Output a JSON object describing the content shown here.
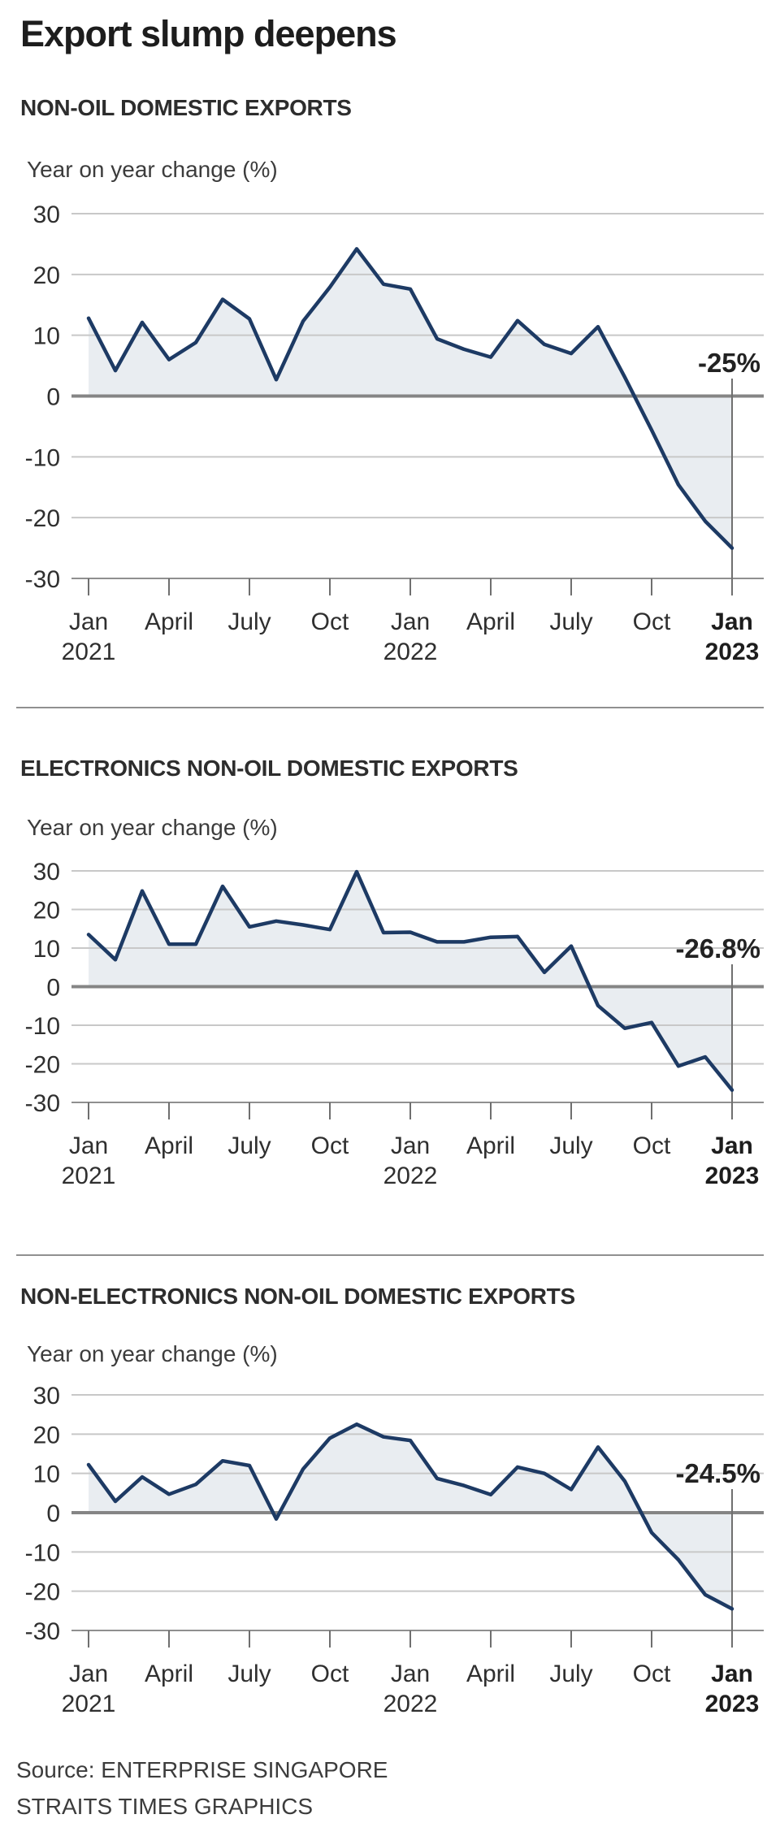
{
  "title": "Export slump deepens",
  "source": {
    "line1": "Source: ENTERPRISE SINGAPORE",
    "line2": "STRAITS TIMES GRAPHICS"
  },
  "colors": {
    "line": "#1d3a64",
    "fill": "#e9edf1",
    "grid": "#c8c8c8",
    "zero_line": "#858585",
    "axis_line": "#8f8f8f",
    "tick": "#6f6f6f",
    "callout": "#6f6f6f"
  },
  "chart_data": [
    {
      "type": "area",
      "title": "NON-OIL DOMESTIC EXPORTS",
      "ylabel": "Year on year change (%)",
      "ylim": [
        -30,
        30
      ],
      "y_ticks": [
        30,
        20,
        10,
        0,
        -10,
        -20,
        -30
      ],
      "grid": "horizontal",
      "x": [
        "Jan 2021",
        "Feb 2021",
        "Mar 2021",
        "Apr 2021",
        "May 2021",
        "Jun 2021",
        "Jul 2021",
        "Aug 2021",
        "Sep 2021",
        "Oct 2021",
        "Nov 2021",
        "Dec 2021",
        "Jan 2022",
        "Feb 2022",
        "Mar 2022",
        "Apr 2022",
        "May 2022",
        "Jun 2022",
        "Jul 2022",
        "Aug 2022",
        "Sep 2022",
        "Oct 2022",
        "Nov 2022",
        "Dec 2022",
        "Jan 2023"
      ],
      "values": [
        12.8,
        4.2,
        12.1,
        6.0,
        8.8,
        15.9,
        12.7,
        2.7,
        12.3,
        17.9,
        24.2,
        18.4,
        17.6,
        9.4,
        7.7,
        6.4,
        12.4,
        8.5,
        7.0,
        11.4,
        3.1,
        -5.6,
        -14.6,
        -20.6,
        -25.0
      ],
      "x_ticks": [
        {
          "i": 0,
          "month": "Jan",
          "year": "2021",
          "bold": false
        },
        {
          "i": 3,
          "month": "April",
          "bold": false
        },
        {
          "i": 6,
          "month": "July",
          "bold": false
        },
        {
          "i": 9,
          "month": "Oct",
          "bold": false
        },
        {
          "i": 12,
          "month": "Jan",
          "year": "2022",
          "bold": false
        },
        {
          "i": 15,
          "month": "April",
          "bold": false
        },
        {
          "i": 18,
          "month": "July",
          "bold": false
        },
        {
          "i": 21,
          "month": "Oct",
          "bold": false
        },
        {
          "i": 24,
          "month": "Jan",
          "year": "2023",
          "bold": true
        }
      ],
      "annotation": {
        "text": "-25%",
        "points_to": "Jan 2023",
        "value": -25.0
      }
    },
    {
      "type": "area",
      "title": "ELECTRONICS NON-OIL DOMESTIC EXPORTS",
      "ylabel": "Year on year change (%)",
      "ylim": [
        -30,
        30
      ],
      "y_ticks": [
        30,
        20,
        10,
        0,
        -10,
        -20,
        -30
      ],
      "grid": "horizontal",
      "x": [
        "Jan 2021",
        "Feb 2021",
        "Mar 2021",
        "Apr 2021",
        "May 2021",
        "Jun 2021",
        "Jul 2021",
        "Aug 2021",
        "Sep 2021",
        "Oct 2021",
        "Nov 2021",
        "Dec 2021",
        "Jan 2022",
        "Feb 2022",
        "Mar 2022",
        "Apr 2022",
        "May 2022",
        "Jun 2022",
        "Jul 2022",
        "Aug 2022",
        "Sep 2022",
        "Oct 2022",
        "Nov 2022",
        "Dec 2022",
        "Jan 2023"
      ],
      "values": [
        13.5,
        7.0,
        24.8,
        11.0,
        11.0,
        26.0,
        15.5,
        17.0,
        16.0,
        14.8,
        29.8,
        14.0,
        14.1,
        11.6,
        11.6,
        12.8,
        13.0,
        3.7,
        10.5,
        -4.9,
        -10.8,
        -9.3,
        -20.6,
        -18.2,
        -26.8
      ],
      "x_ticks": [
        {
          "i": 0,
          "month": "Jan",
          "year": "2021",
          "bold": false
        },
        {
          "i": 3,
          "month": "April",
          "bold": false
        },
        {
          "i": 6,
          "month": "July",
          "bold": false
        },
        {
          "i": 9,
          "month": "Oct",
          "bold": false
        },
        {
          "i": 12,
          "month": "Jan",
          "year": "2022",
          "bold": false
        },
        {
          "i": 15,
          "month": "April",
          "bold": false
        },
        {
          "i": 18,
          "month": "July",
          "bold": false
        },
        {
          "i": 21,
          "month": "Oct",
          "bold": false
        },
        {
          "i": 24,
          "month": "Jan",
          "year": "2023",
          "bold": true
        }
      ],
      "annotation": {
        "text": "-26.8%",
        "points_to": "Jan 2023",
        "value": -26.8
      }
    },
    {
      "type": "area",
      "title": "NON-ELECTRONICS NON-OIL DOMESTIC EXPORTS",
      "ylabel": "Year on year change (%)",
      "ylim": [
        -30,
        30
      ],
      "y_ticks": [
        30,
        20,
        10,
        0,
        -10,
        -20,
        -30
      ],
      "grid": "horizontal",
      "x": [
        "Jan 2021",
        "Feb 2021",
        "Mar 2021",
        "Apr 2021",
        "May 2021",
        "Jun 2021",
        "Jul 2021",
        "Aug 2021",
        "Sep 2021",
        "Oct 2021",
        "Nov 2021",
        "Dec 2021",
        "Jan 2022",
        "Feb 2022",
        "Mar 2022",
        "Apr 2022",
        "May 2022",
        "Jun 2022",
        "Jul 2022",
        "Aug 2022",
        "Sep 2022",
        "Oct 2022",
        "Nov 2022",
        "Dec 2022",
        "Jan 2023"
      ],
      "values": [
        12.2,
        2.9,
        9.1,
        4.7,
        7.2,
        13.2,
        12.0,
        -1.6,
        11.1,
        19.0,
        22.5,
        19.3,
        18.4,
        8.7,
        6.9,
        4.6,
        11.6,
        10.0,
        5.9,
        16.7,
        8.0,
        -5.1,
        -12.0,
        -20.9,
        -24.5
      ],
      "x_ticks": [
        {
          "i": 0,
          "month": "Jan",
          "year": "2021",
          "bold": false
        },
        {
          "i": 3,
          "month": "April",
          "bold": false
        },
        {
          "i": 6,
          "month": "July",
          "bold": false
        },
        {
          "i": 9,
          "month": "Oct",
          "bold": false
        },
        {
          "i": 12,
          "month": "Jan",
          "year": "2022",
          "bold": false
        },
        {
          "i": 15,
          "month": "April",
          "bold": false
        },
        {
          "i": 18,
          "month": "July",
          "bold": false
        },
        {
          "i": 21,
          "month": "Oct",
          "bold": false
        },
        {
          "i": 24,
          "month": "Jan",
          "year": "2023",
          "bold": true
        }
      ],
      "annotation": {
        "text": "-24.5%",
        "points_to": "Jan 2023",
        "value": -24.5
      }
    }
  ]
}
